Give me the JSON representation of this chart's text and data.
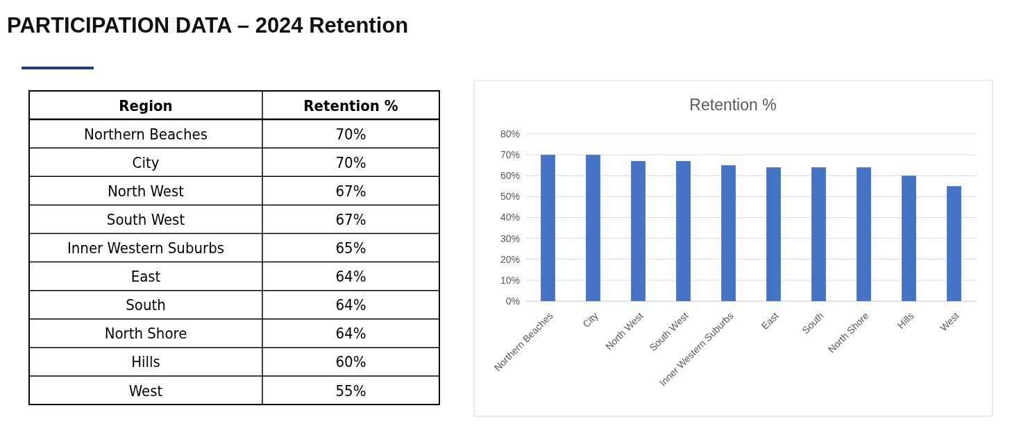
{
  "chart_data": [
    {
      "type": "other",
      "title": "PARTICIPATION DATA – 2024 Retention",
      "annotations": [
        "Region",
        "Retention %",
        "Northern Beaches",
        "70%",
        "City",
        "70%",
        "North West",
        "67%",
        "South West",
        "67%",
        "Inner Western Suburbs",
        "65%",
        "East",
        "64%",
        "South",
        "64%",
        "North Shore",
        "64%",
        "Hills",
        "60%",
        "West",
        "55%"
      ]
    },
    {
      "type": "bar",
      "title": "Retention %",
      "categories": [
        "Northern Beaches",
        "City",
        "North West",
        "South West",
        "Inner Western Suburbs",
        "East",
        "South",
        "North Shore",
        "Hills",
        "West"
      ],
      "values": [
        70,
        70,
        67,
        67,
        65,
        64,
        64,
        64,
        60,
        55
      ],
      "color": "#4472c4",
      "ylim": [
        0,
        80
      ],
      "yticks": [
        {
          "value": 0,
          "label": "0%"
        },
        {
          "value": 10,
          "label": "10%"
        },
        {
          "value": 20,
          "label": "20%"
        },
        {
          "value": 30,
          "label": "30%"
        },
        {
          "value": 40,
          "label": "40%"
        },
        {
          "value": 50,
          "label": "50%"
        },
        {
          "value": 60,
          "label": "60%"
        },
        {
          "value": 70,
          "label": "70%"
        },
        {
          "value": 80,
          "label": "80%"
        }
      ],
      "grid": "y"
    }
  ]
}
